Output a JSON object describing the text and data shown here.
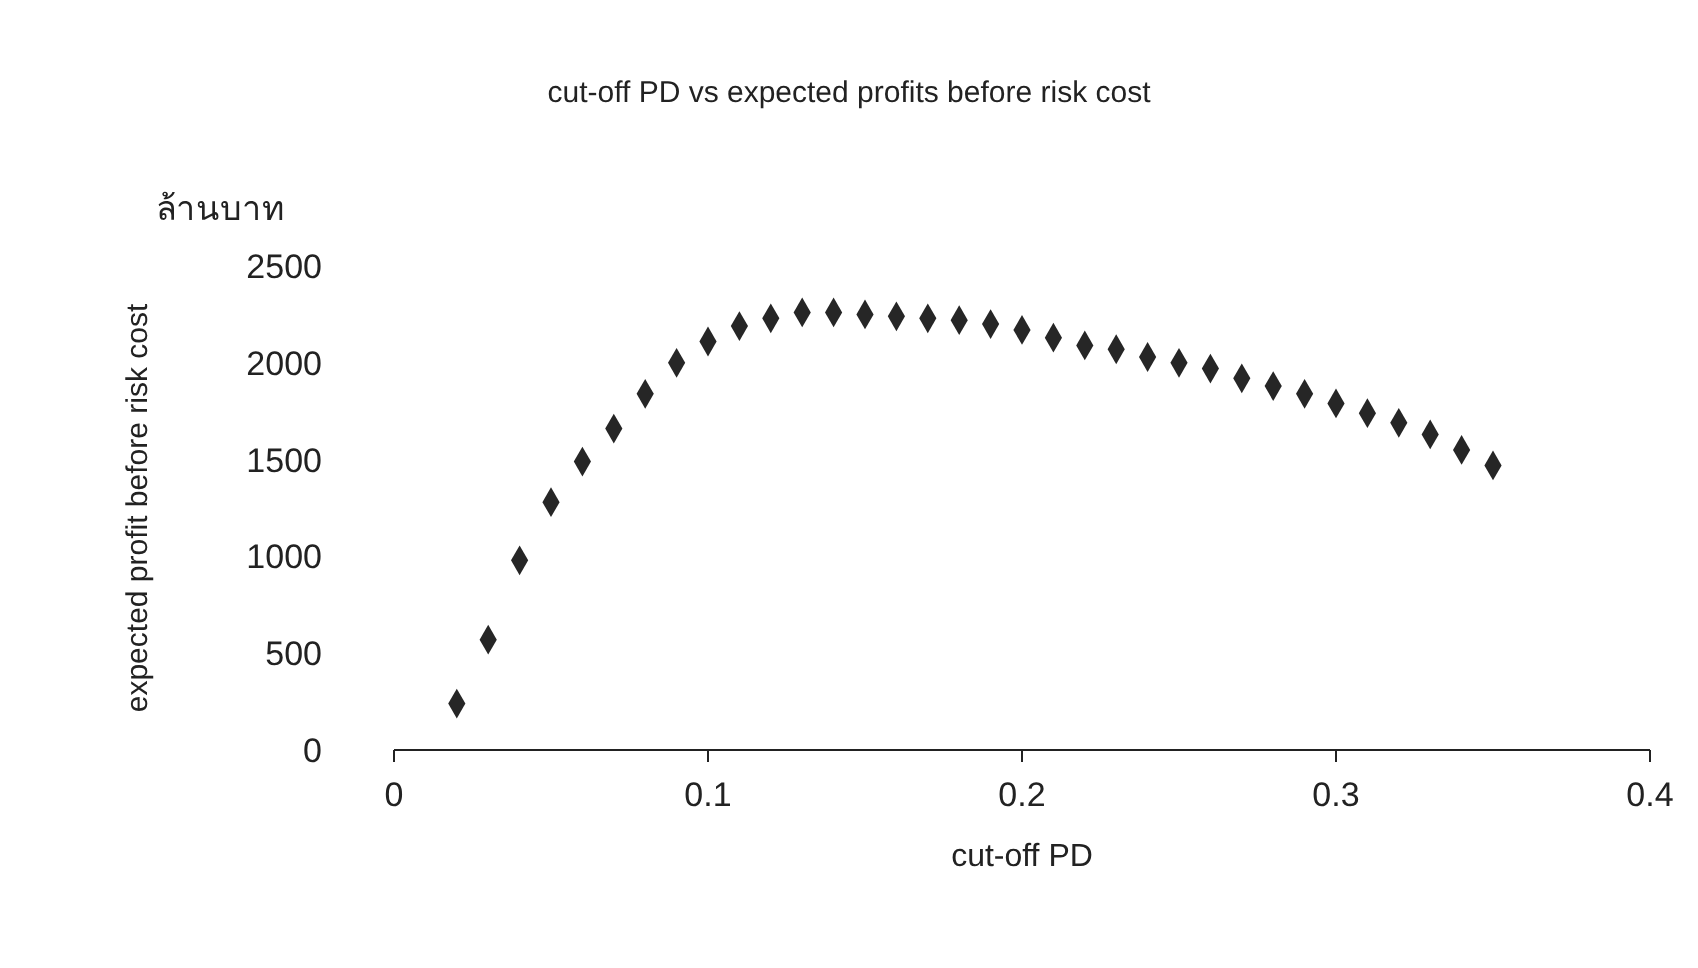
{
  "chart_data": {
    "type": "scatter",
    "title": "cut-off PD vs  expected  profits before risk cost",
    "xlabel": "cut-off PD",
    "ylabel": "expected profit before risk cost",
    "annotations": [
      "ล้านบาท"
    ],
    "x": [
      0.02,
      0.03,
      0.04,
      0.05,
      0.06,
      0.07,
      0.08,
      0.09,
      0.1,
      0.11,
      0.12,
      0.13,
      0.14,
      0.15,
      0.16,
      0.17,
      0.18,
      0.19,
      0.2,
      0.21,
      0.22,
      0.23,
      0.24,
      0.25,
      0.26,
      0.27,
      0.28,
      0.29,
      0.3,
      0.31,
      0.32,
      0.33,
      0.34,
      0.35
    ],
    "series": [
      {
        "color": "#262626",
        "values": [
          240,
          570,
          980,
          1280,
          1490,
          1660,
          1840,
          2000,
          2110,
          2190,
          2230,
          2260,
          2260,
          2250,
          2240,
          2230,
          2220,
          2200,
          2170,
          2130,
          2090,
          2070,
          2030,
          2000,
          1970,
          1920,
          1880,
          1840,
          1790,
          1740,
          1690,
          1630,
          1550,
          1470
        ]
      }
    ],
    "xlim": [
      0,
      0.4
    ],
    "xticks": [
      0,
      0.1,
      0.2,
      0.3,
      0.4
    ],
    "ylim": [
      0,
      2500
    ],
    "yticks": [
      0,
      500,
      1000,
      1500,
      2000,
      2500
    ],
    "grid": false,
    "legend": false,
    "marker": "diamond"
  }
}
